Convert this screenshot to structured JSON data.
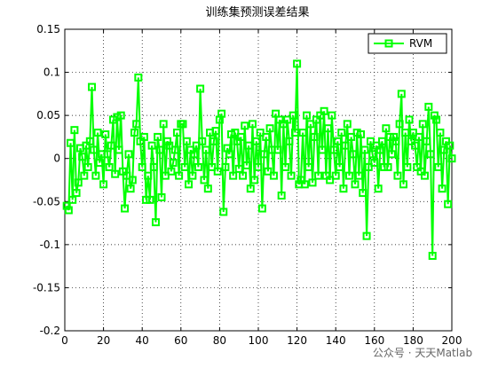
{
  "chart_data": {
    "type": "line",
    "title": "训练集预测误差结果",
    "watermark": "公众号 · 天天Matlab",
    "x": [
      1,
      2,
      3,
      4,
      5,
      6,
      7,
      8,
      9,
      10,
      11,
      12,
      13,
      14,
      15,
      16,
      17,
      18,
      19,
      20,
      21,
      22,
      23,
      24,
      25,
      26,
      27,
      28,
      29,
      30,
      31,
      32,
      33,
      34,
      35,
      36,
      37,
      38,
      39,
      40,
      41,
      42,
      43,
      44,
      45,
      46,
      47,
      48,
      49,
      50,
      51,
      52,
      53,
      54,
      55,
      56,
      57,
      58,
      59,
      60,
      61,
      62,
      63,
      64,
      65,
      66,
      67,
      68,
      69,
      70,
      71,
      72,
      73,
      74,
      75,
      76,
      77,
      78,
      79,
      80,
      81,
      82,
      83,
      84,
      85,
      86,
      87,
      88,
      89,
      90,
      91,
      92,
      93,
      94,
      95,
      96,
      97,
      98,
      99,
      100,
      101,
      102,
      103,
      104,
      105,
      106,
      107,
      108,
      109,
      110,
      111,
      112,
      113,
      114,
      115,
      116,
      117,
      118,
      119,
      120,
      121,
      122,
      123,
      124,
      125,
      126,
      127,
      128,
      129,
      130,
      131,
      132,
      133,
      134,
      135,
      136,
      137,
      138,
      139,
      140,
      141,
      142,
      143,
      144,
      145,
      146,
      147,
      148,
      149,
      150,
      151,
      152,
      153,
      154,
      155,
      156,
      157,
      158,
      159,
      160,
      161,
      162,
      163,
      164,
      165,
      166,
      167,
      168,
      169,
      170,
      171,
      172,
      173,
      174,
      175,
      176,
      177,
      178,
      179,
      180,
      181,
      182,
      183,
      184,
      185,
      186,
      187,
      188,
      189,
      190,
      191,
      192,
      193,
      194,
      195,
      196,
      197,
      198,
      199,
      200
    ],
    "series": [
      {
        "name": "RVM",
        "color": "#00ff00",
        "values": [
          -0.055,
          -0.06,
          0.018,
          -0.048,
          0.033,
          -0.04,
          -0.028,
          0.012,
          0.002,
          -0.02,
          0.015,
          -0.01,
          0.02,
          0.083,
          0.01,
          -0.02,
          0.03,
          -0.005,
          0.005,
          -0.03,
          0.028,
          0.005,
          -0.01,
          0.015,
          0.045,
          -0.018,
          0.048,
          0.01,
          0.05,
          -0.015,
          -0.058,
          -0.02,
          0.005,
          -0.035,
          -0.025,
          0.03,
          0.04,
          0.094,
          0.02,
          -0.01,
          0.025,
          -0.048,
          -0.02,
          -0.048,
          0.015,
          -0.01,
          -0.074,
          0.025,
          0.01,
          -0.045,
          0.04,
          -0.02,
          0.02,
          0.015,
          -0.015,
          -0.005,
          0.01,
          0.03,
          -0.02,
          0.04,
          0.04,
          -0.01,
          0.02,
          -0.03,
          0.01,
          -0.02,
          0.005,
          0.015,
          -0.01,
          0.081,
          0.02,
          -0.025,
          0.01,
          -0.035,
          0.03,
          -0.01,
          0.02,
          0.032,
          -0.015,
          0.045,
          0.052,
          -0.062,
          -0.01,
          0.012,
          0.005,
          0.028,
          -0.02,
          0.03,
          0.02,
          -0.012,
          0.025,
          -0.02,
          0.038,
          -0.008,
          0.015,
          -0.035,
          0.04,
          -0.025,
          0.02,
          -0.01,
          0.03,
          -0.058,
          0.005,
          0.025,
          -0.015,
          0.035,
          0.01,
          -0.02,
          0.052,
          0.01,
          0.045,
          -0.043,
          0.04,
          -0.01,
          0.045,
          0.02,
          -0.02,
          0.05,
          0.03,
          0.11,
          -0.03,
          -0.025,
          0.03,
          -0.03,
          0.05,
          -0.01,
          0.04,
          -0.028,
          0.025,
          0.045,
          -0.02,
          0.05,
          0.01,
          0.055,
          -0.02,
          0.035,
          -0.025,
          0.05,
          0.01,
          -0.02,
          0.02,
          -0.01,
          0.03,
          -0.035,
          0.015,
          0.04,
          -0.02,
          0.025,
          0.005,
          -0.03,
          0.03,
          -0.02,
          0.028,
          -0.04,
          0.01,
          -0.09,
          -0.01,
          0.02,
          0.005,
          -0.005,
          0.015,
          -0.035,
          0.01,
          0.02,
          -0.01,
          0.035,
          -0.01,
          0.025,
          0.005,
          0.025,
          0.02,
          -0.02,
          0.04,
          0.075,
          -0.03,
          0.03,
          -0.01,
          0.045,
          0.02,
          0.03,
          0.015,
          -0.01,
          0.025,
          -0.015,
          0.04,
          -0.02,
          0.02,
          0.06,
          0.005,
          -0.113,
          0.05,
          0.045,
          -0.01,
          0.03,
          -0.035,
          0.01,
          0.02,
          -0.053,
          0.015,
          0
        ]
      }
    ],
    "xlim": [
      0,
      200
    ],
    "xticks": [
      0,
      20,
      40,
      60,
      80,
      100,
      120,
      140,
      160,
      180,
      200
    ],
    "ylim": [
      -0.2,
      0.15
    ],
    "yticks": [
      -0.2,
      -0.15,
      -0.1,
      -0.05,
      0,
      0.05,
      0.1,
      0.15
    ],
    "grid": true,
    "legend": "upper right"
  }
}
